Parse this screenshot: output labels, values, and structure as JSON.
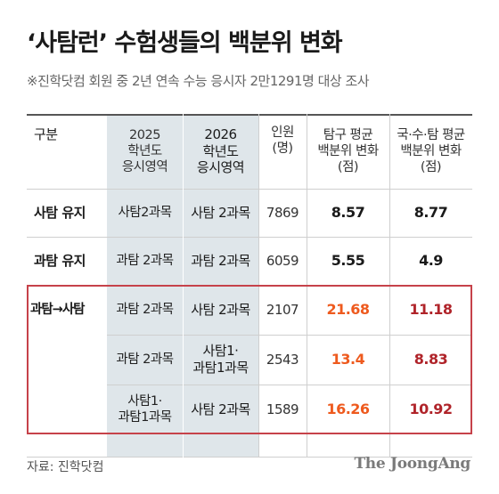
{
  "title": "‘사탐런’ 수험생들의 백분위 변화",
  "subtitle": "※진학닷컴 회원 중 2년 연속 수능 응시자 2만1291명 대상 조사",
  "headers": {
    "category": "구분",
    "y2025": [
      "2025",
      "학년도",
      "응시영역"
    ],
    "y2026": [
      "2026",
      "학년도",
      "응시영역"
    ],
    "people": [
      "인원",
      "(명)"
    ],
    "inquiry": [
      "탐구 평균",
      "백분위 변화",
      "(점)"
    ],
    "all": [
      "국·수·탐 평균",
      "백분위 변화",
      "(점)"
    ]
  },
  "rows": [
    {
      "label": "사탐 유지",
      "y2025": [
        "사탐2과목"
      ],
      "y2026": [
        "사탐 2과목"
      ],
      "people": "7869",
      "inquiry": "8.57",
      "all": "8.77"
    },
    {
      "label": "과탐 유지",
      "y2025": [
        "과탐 2과목"
      ],
      "y2026": [
        "과탐 2과목"
      ],
      "people": "6059",
      "inquiry": "5.55",
      "all": "4.9"
    },
    {
      "label": "과탐→사탐",
      "y2025": [
        "과탐 2과목"
      ],
      "y2026": [
        "사탐 2과목"
      ],
      "people": "2107",
      "inquiry": "21.68",
      "all": "11.18"
    },
    {
      "label": "",
      "y2025": [
        "과탐 2과목"
      ],
      "y2026": [
        "사탐1·",
        "과탐1과목"
      ],
      "people": "2543",
      "inquiry": "13.4",
      "all": "8.83"
    },
    {
      "label": "",
      "y2025": [
        "사탐1·",
        "과탐1과목"
      ],
      "y2026": [
        "사탐 2과목"
      ],
      "people": "1589",
      "inquiry": "16.26",
      "all": "10.92"
    }
  ],
  "colors": {
    "inquiry_highlight": "#ee5a1e",
    "all_highlight": "#b0242a",
    "box_border": "#c6424a",
    "column_shade": "#dfe6ea"
  },
  "source": "자료: 진학닷컴",
  "logo": "The JoongAng"
}
